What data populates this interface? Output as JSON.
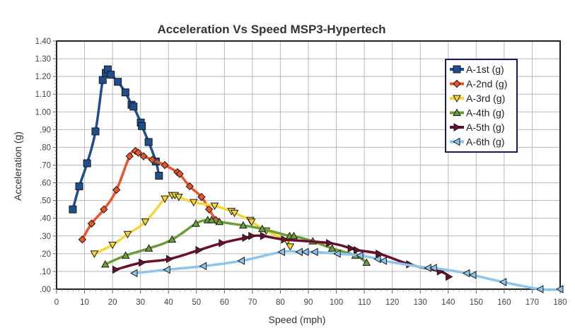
{
  "chart_data": {
    "type": "line",
    "title": "Acceleration Vs Speed MSP3-Hypertech",
    "xlabel": "Speed (mph)",
    "ylabel": "Acceleration (g)",
    "xlim": [
      0,
      180
    ],
    "ylim": [
      0,
      1.4
    ],
    "x_ticks": [
      0,
      10,
      20,
      30,
      40,
      50,
      60,
      70,
      80,
      90,
      100,
      110,
      120,
      130,
      140,
      150,
      160,
      170,
      180
    ],
    "x_tick_labels": [
      "0",
      "10",
      "20",
      "30",
      "40",
      "50",
      "60",
      "70",
      "80",
      "90",
      "100",
      "110",
      "120",
      "130",
      "140",
      "150",
      "160",
      "170",
      "180"
    ],
    "y_ticks": [
      0,
      0.1,
      0.2,
      0.3,
      0.4,
      0.5,
      0.6,
      0.7,
      0.8,
      0.9,
      1.0,
      1.1,
      1.2,
      1.3,
      1.4
    ],
    "y_tick_labels": [
      ".00",
      ".10",
      ".20",
      ".30",
      ".40",
      ".50",
      ".60",
      ".70",
      ".80",
      ".90",
      "1.00",
      "1.10",
      "1.20",
      "1.30",
      "1.40"
    ],
    "grid": true,
    "legend_position": "top-right",
    "series": [
      {
        "name": "A-1st (g)",
        "color": "#1f4e8c",
        "marker": "square",
        "x": [
          5.8,
          8.1,
          10.9,
          13.9,
          16.5,
          17.6,
          18.3,
          19.4,
          21.9,
          24.6,
          26.8,
          27.5,
          30.1,
          30.5,
          32.9,
          35.5,
          36.6
        ],
        "y": [
          0.45,
          0.58,
          0.71,
          0.89,
          1.18,
          1.22,
          1.24,
          1.21,
          1.17,
          1.11,
          1.04,
          1.03,
          0.94,
          0.92,
          0.83,
          0.72,
          0.64
        ]
      },
      {
        "name": "A-2nd (g)",
        "color": "#e8552a",
        "marker": "diamond",
        "x": [
          9.2,
          12.5,
          16.9,
          21.4,
          26.1,
          28.2,
          29.2,
          31.1,
          34.2,
          38.7,
          43.2,
          44.0,
          47.6,
          51.8,
          54.5,
          56.9
        ],
        "y": [
          0.28,
          0.37,
          0.45,
          0.56,
          0.75,
          0.78,
          0.77,
          0.75,
          0.73,
          0.7,
          0.66,
          0.65,
          0.58,
          0.52,
          0.45,
          0.39
        ]
      },
      {
        "name": "A-3rd (g)",
        "color": "#f5d635",
        "marker": "triangle-down",
        "x": [
          13.5,
          20.0,
          25.4,
          31.7,
          38.7,
          41.3,
          42.3,
          43.7,
          49.0,
          56.5,
          62.5,
          63.6,
          69.2,
          69.7,
          74.9,
          82.4,
          83.5
        ],
        "y": [
          0.2,
          0.25,
          0.31,
          0.38,
          0.51,
          0.53,
          0.53,
          0.52,
          0.49,
          0.47,
          0.44,
          0.43,
          0.39,
          0.38,
          0.33,
          0.27,
          0.24
        ]
      },
      {
        "name": "A-4th (g)",
        "color": "#6b9e3a",
        "marker": "triangle-up",
        "x": [
          17.4,
          24.7,
          33.0,
          41.3,
          49.8,
          54.0,
          55.4,
          58.2,
          66.7,
          73.5,
          83.3,
          84.8,
          91.6,
          98.5,
          106.8,
          110.8
        ],
        "y": [
          0.14,
          0.19,
          0.23,
          0.28,
          0.37,
          0.39,
          0.39,
          0.38,
          0.36,
          0.34,
          0.3,
          0.3,
          0.27,
          0.23,
          0.19,
          0.15
        ]
      },
      {
        "name": "A-5th (g)",
        "color": "#6a0f2e",
        "marker": "triangle-right",
        "x": [
          21.1,
          30.5,
          40.3,
          50.8,
          59.1,
          67.5,
          69.7,
          73.9,
          81.4,
          97.5,
          105.2,
          107.3,
          115.2,
          126.1,
          137.1,
          140.2
        ],
        "y": [
          0.11,
          0.15,
          0.17,
          0.22,
          0.26,
          0.29,
          0.3,
          0.3,
          0.28,
          0.26,
          0.23,
          0.22,
          0.2,
          0.14,
          0.1,
          0.07
        ]
      },
      {
        "name": "A-6th (g)",
        "color": "#8ec4ec",
        "marker": "triangle-left",
        "x": [
          27.8,
          39.5,
          52.5,
          66.1,
          80.5,
          86.8,
          89.0,
          92.3,
          100.4,
          108.5,
          114.8,
          116.9,
          132.8,
          134.8,
          146.6,
          148.9,
          159.7,
          172.9,
          180.0
        ],
        "y": [
          0.09,
          0.11,
          0.13,
          0.16,
          0.21,
          0.21,
          0.21,
          0.21,
          0.2,
          0.19,
          0.17,
          0.16,
          0.12,
          0.12,
          0.09,
          0.08,
          0.04,
          0.0,
          0.0
        ]
      }
    ]
  }
}
